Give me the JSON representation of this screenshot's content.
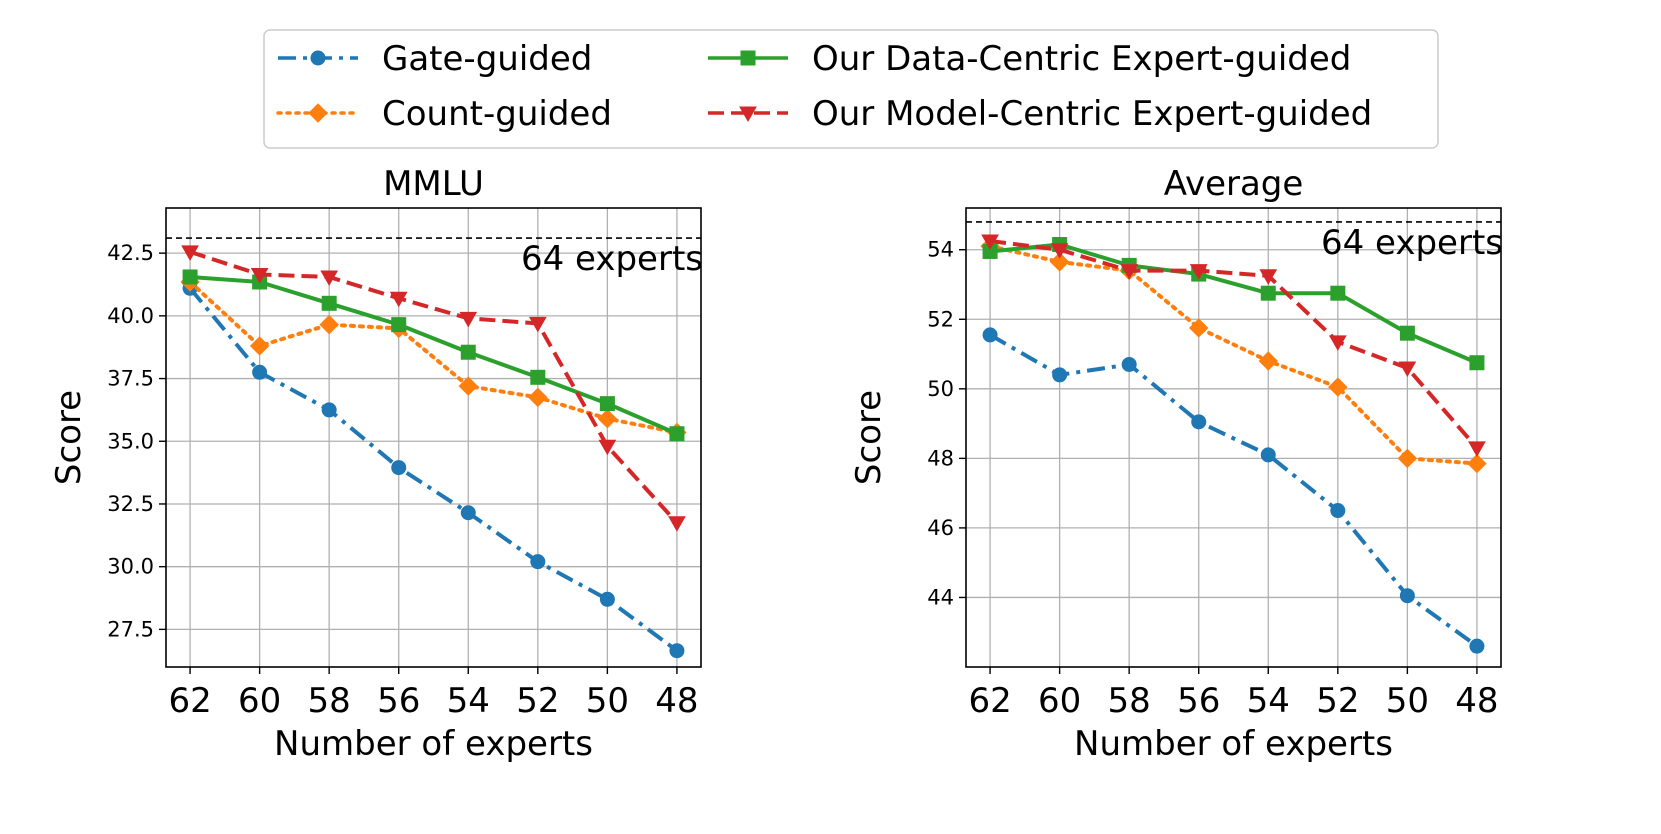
{
  "figure": {
    "legend": [
      {
        "label": "Gate-guided",
        "color": "#1f77b4",
        "dash": "dashdot",
        "marker": "circle"
      },
      {
        "label": "Count-guided",
        "color": "#ff7f0e",
        "dash": "dotted",
        "marker": "diamond"
      },
      {
        "label": "Our Data-Centric Expert-guided",
        "color": "#2ca02c",
        "dash": "solid",
        "marker": "square"
      },
      {
        "label": "Our Model-Centric Expert-guided",
        "color": "#d62728",
        "dash": "dashed",
        "marker": "triangle-down"
      }
    ]
  },
  "chart_data": [
    {
      "type": "line",
      "title": "MMLU",
      "xlabel": "Number of experts",
      "ylabel": "Score",
      "categories": [
        "62",
        "60",
        "58",
        "56",
        "54",
        "52",
        "50",
        "48"
      ],
      "ylim": [
        26.0,
        44.3
      ],
      "yticks": [
        27.5,
        30.0,
        32.5,
        35.0,
        37.5,
        40.0,
        42.5
      ],
      "ytick_labels": [
        "27.5",
        "30.0",
        "32.5",
        "35.0",
        "37.5",
        "40.0",
        "42.5"
      ],
      "reference": {
        "value": 43.1,
        "label": "64 experts"
      },
      "grid": true,
      "series": [
        {
          "name": "Gate-guided",
          "values": [
            41.1,
            37.75,
            36.25,
            33.95,
            32.15,
            30.2,
            28.7,
            26.65
          ]
        },
        {
          "name": "Count-guided",
          "values": [
            41.35,
            38.8,
            39.65,
            39.5,
            37.2,
            36.75,
            35.9,
            35.35
          ]
        },
        {
          "name": "Our Data-Centric Expert-guided",
          "values": [
            41.55,
            41.35,
            40.5,
            39.65,
            38.55,
            37.55,
            36.5,
            35.3
          ]
        },
        {
          "name": "Our Model-Centric Expert-guided",
          "values": [
            42.55,
            41.65,
            41.55,
            40.7,
            39.9,
            39.7,
            34.8,
            31.75
          ]
        }
      ]
    },
    {
      "type": "line",
      "title": "Average",
      "xlabel": "Number of experts",
      "ylabel": "Score",
      "categories": [
        "62",
        "60",
        "58",
        "56",
        "54",
        "52",
        "50",
        "48"
      ],
      "ylim": [
        42.0,
        55.2
      ],
      "yticks": [
        44,
        46,
        48,
        50,
        52,
        54
      ],
      "ytick_labels": [
        "44",
        "46",
        "48",
        "50",
        "52",
        "54"
      ],
      "reference": {
        "value": 54.8,
        "label": "64 experts"
      },
      "grid": true,
      "series": [
        {
          "name": "Gate-guided",
          "values": [
            51.55,
            50.4,
            50.7,
            49.05,
            48.1,
            46.5,
            44.05,
            42.6
          ]
        },
        {
          "name": "Count-guided",
          "values": [
            54.1,
            53.65,
            53.4,
            51.75,
            50.8,
            50.05,
            48.0,
            47.85
          ]
        },
        {
          "name": "Our Data-Centric Expert-guided",
          "values": [
            53.95,
            54.15,
            53.55,
            53.3,
            52.75,
            52.75,
            51.6,
            50.75
          ]
        },
        {
          "name": "Our Model-Centric Expert-guided",
          "values": [
            54.25,
            54.0,
            53.4,
            53.4,
            53.25,
            51.35,
            50.6,
            48.3
          ]
        }
      ]
    }
  ]
}
